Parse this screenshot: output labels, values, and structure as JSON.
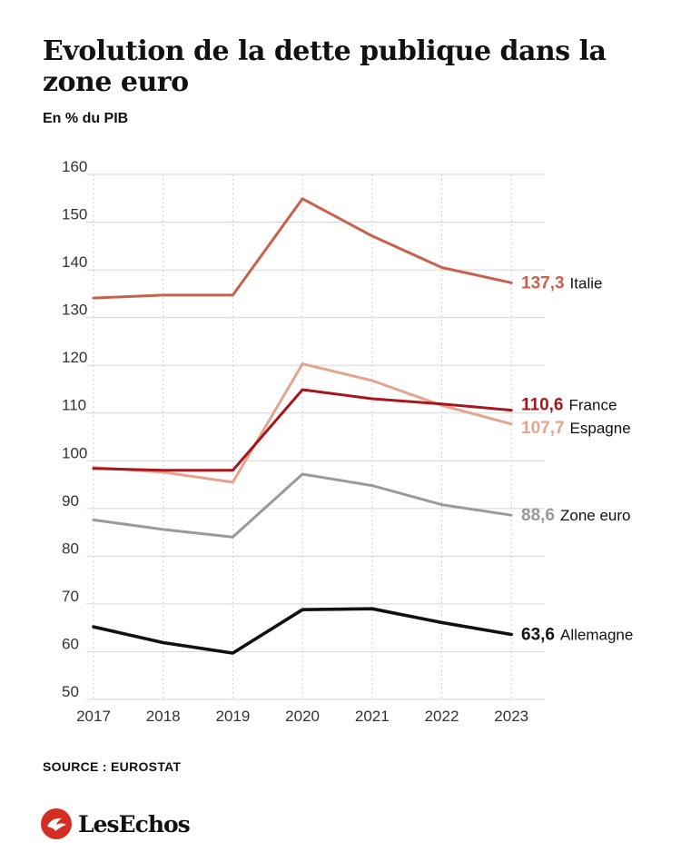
{
  "header": {
    "title": "Evolution de la dette publique dans la zone euro",
    "subtitle": "En % du PIB"
  },
  "footer": {
    "source": "SOURCE : EUROSTAT",
    "brand": "LesEchos",
    "brand_color": "#d42e24"
  },
  "chart_data": {
    "type": "line",
    "title": "Evolution de la dette publique dans la zone euro",
    "subtitle": "En % du PIB",
    "x": [
      "2017",
      "2018",
      "2019",
      "2020",
      "2021",
      "2022",
      "2023"
    ],
    "ylim": [
      50,
      160
    ],
    "yticks": [
      50,
      60,
      70,
      80,
      90,
      100,
      110,
      120,
      130,
      140,
      150,
      160
    ],
    "grid": true,
    "series": [
      {
        "name": "Italie",
        "label": "137,3",
        "color": "#c8614b",
        "values": [
          134.1,
          134.7,
          134.7,
          154.9,
          147.1,
          140.5,
          137.3
        ]
      },
      {
        "name": "Espagne",
        "label": "107,7",
        "color": "#e5a48d",
        "values": [
          98.6,
          97.6,
          95.5,
          120.3,
          116.8,
          111.6,
          107.7
        ]
      },
      {
        "name": "France",
        "label": "110,6",
        "color": "#a8161d",
        "values": [
          98.4,
          98.0,
          98.0,
          114.9,
          113.0,
          111.9,
          110.6
        ]
      },
      {
        "name": "Zone euro",
        "label": "88,6",
        "color": "#9a9a9a",
        "values": [
          87.6,
          85.6,
          84.0,
          97.2,
          94.8,
          90.8,
          88.6
        ]
      },
      {
        "name": "Allemagne",
        "label": "63,6",
        "color": "#111111",
        "values": [
          65.2,
          61.9,
          59.7,
          68.8,
          69.0,
          66.1,
          63.6
        ]
      }
    ]
  }
}
